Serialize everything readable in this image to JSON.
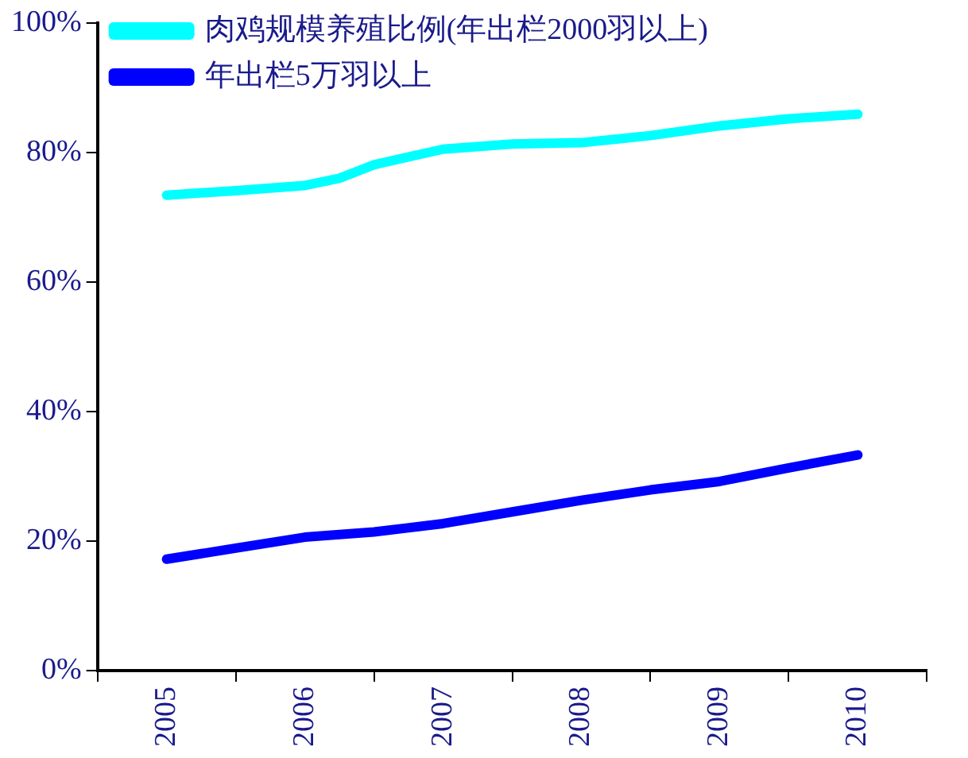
{
  "chart_data": {
    "type": "line",
    "legend": "top left",
    "line_style": "solid",
    "marker": "none",
    "x": [
      2005,
      2005.5,
      2006,
      2006.25,
      2006.5,
      2007,
      2007.5,
      2008,
      2008.5,
      2009,
      2009.5,
      2010
    ],
    "xlim": [
      2004.5,
      2010.5
    ],
    "xticks": [
      {
        "value": 2004.5,
        "label": null
      },
      {
        "value": 2005,
        "label": "2005"
      },
      {
        "value": 2005.5,
        "label": null
      },
      {
        "value": 2006,
        "label": "2006"
      },
      {
        "value": 2006.5,
        "label": null
      },
      {
        "value": 2007,
        "label": "2007"
      },
      {
        "value": 2007.5,
        "label": null
      },
      {
        "value": 2008,
        "label": "2008"
      },
      {
        "value": 2008.5,
        "label": null
      },
      {
        "value": 2009,
        "label": "2009"
      },
      {
        "value": 2009.5,
        "label": null
      },
      {
        "value": 2010,
        "label": "2010"
      },
      {
        "value": 2010.5,
        "label": null
      }
    ],
    "ylim": [
      0,
      100
    ],
    "yticks": [
      {
        "value": 0,
        "label": "0%"
      },
      {
        "value": 20,
        "label": "20%"
      },
      {
        "value": 40,
        "label": "40%"
      },
      {
        "value": 60,
        "label": "60%"
      },
      {
        "value": 80,
        "label": "80%"
      },
      {
        "value": 100,
        "label": "100%"
      }
    ],
    "series": [
      {
        "name": "肉鸡规模养殖比例(年出栏2000羽以上)",
        "color": "#00ffff",
        "values": [
          73.4,
          74.1,
          74.9,
          76,
          78.1,
          80.5,
          81.3,
          81.5,
          82.6,
          84.1,
          85.2,
          85.9
        ]
      },
      {
        "name": "年出栏5万羽以上",
        "color": "#0000ff",
        "values": [
          17.2,
          18.9,
          20.6,
          21.0,
          21.4,
          22.7,
          24.5,
          26.3,
          27.9,
          29.2,
          31.3,
          33.3
        ]
      }
    ]
  }
}
